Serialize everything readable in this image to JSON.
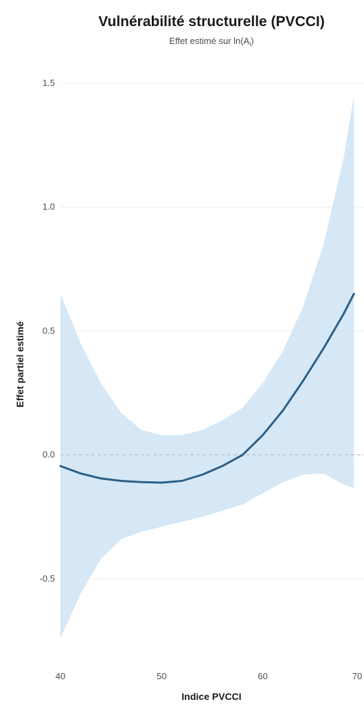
{
  "chart_data": {
    "type": "line",
    "title": "Vulnérabilité structurelle (PVCCI)",
    "subtitle": "Effet estimé sur ln(A",
    "subtitle_subscript": "i",
    "subtitle_suffix": ")",
    "xlabel": "Indice PVCCI",
    "ylabel": "Effet partiel estimé",
    "xlim": [
      40,
      70
    ],
    "ylim": [
      -0.85,
      1.6
    ],
    "x_ticks": [
      40,
      50,
      60,
      70
    ],
    "x_tick_labels": [
      "40",
      "50",
      "60",
      "70"
    ],
    "y_ticks": [
      1.5,
      1.0,
      0.5,
      0.0,
      -0.5
    ],
    "y_tick_labels": [
      "1.5",
      "1.0",
      "0.5",
      "0.0",
      "-0.5"
    ],
    "grid": true,
    "reference_line_y": 0,
    "series": [
      {
        "x": [
          40,
          42,
          44,
          46,
          48,
          50,
          52,
          54,
          56,
          58,
          60,
          62,
          64,
          66,
          68,
          69
        ],
        "y": [
          -0.045,
          -0.075,
          -0.095,
          -0.105,
          -0.11,
          -0.112,
          -0.105,
          -0.08,
          -0.045,
          0.0,
          0.08,
          0.18,
          0.3,
          0.43,
          0.57,
          0.65
        ],
        "lower": [
          -0.74,
          -0.56,
          -0.42,
          -0.34,
          -0.31,
          -0.29,
          -0.27,
          -0.25,
          -0.225,
          -0.2,
          -0.155,
          -0.11,
          -0.08,
          -0.075,
          -0.12,
          -0.135
        ],
        "upper": [
          0.65,
          0.45,
          0.29,
          0.17,
          0.1,
          0.08,
          0.08,
          0.1,
          0.14,
          0.19,
          0.29,
          0.42,
          0.6,
          0.85,
          1.2,
          1.45
        ]
      }
    ],
    "colors": {
      "line": "#2b5f86",
      "band": "#d6e8f6",
      "grid": "#ececec",
      "reference": "#b5b5b5"
    }
  }
}
